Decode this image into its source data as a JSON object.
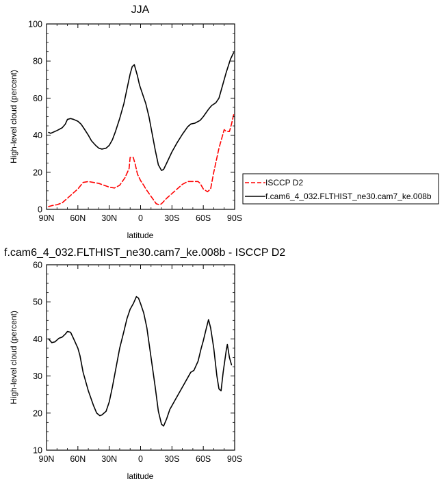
{
  "chart_data": [
    {
      "type": "line",
      "title": "JJA",
      "xlabel": "latitude",
      "ylabel": "High-level cloud (percent)",
      "xlim": [
        90,
        -90
      ],
      "ylim": [
        0,
        100
      ],
      "x_ticks": [
        90,
        60,
        30,
        0,
        -30,
        -60,
        -90
      ],
      "x_tick_labels": [
        "90N",
        "60N",
        "30N",
        "0",
        "30S",
        "60S",
        "90S"
      ],
      "y_ticks": [
        0,
        20,
        40,
        60,
        80,
        100
      ],
      "y_tick_labels": [
        "0",
        "20",
        "40",
        "60",
        "80",
        "100"
      ],
      "grid": false,
      "legend_position": "right",
      "series": [
        {
          "name": "ISCCP D2",
          "color": "#ff0000",
          "dash": "dashed",
          "points": [
            [
              88,
              1.5
            ],
            [
              85,
              2
            ],
            [
              80,
              2.5
            ],
            [
              75,
              3.5
            ],
            [
              70,
              6
            ],
            [
              65,
              8.5
            ],
            [
              60,
              11
            ],
            [
              55,
              14.5
            ],
            [
              50,
              15
            ],
            [
              45,
              14.5
            ],
            [
              40,
              14
            ],
            [
              35,
              13
            ],
            [
              30,
              12
            ],
            [
              25,
              11.5
            ],
            [
              20,
              13
            ],
            [
              15,
              17
            ],
            [
              11,
              22
            ],
            [
              10,
              28
            ],
            [
              7,
              28
            ],
            [
              5,
              24
            ],
            [
              3,
              19
            ],
            [
              0,
              15.5
            ],
            [
              -3,
              13
            ],
            [
              -5,
              11
            ],
            [
              -10,
              7
            ],
            [
              -15,
              3
            ],
            [
              -18,
              2.5
            ],
            [
              -20,
              3
            ],
            [
              -25,
              6
            ],
            [
              -30,
              8.5
            ],
            [
              -35,
              11
            ],
            [
              -40,
              13.5
            ],
            [
              -45,
              15
            ],
            [
              -50,
              15
            ],
            [
              -55,
              15
            ],
            [
              -57,
              14
            ],
            [
              -60,
              11
            ],
            [
              -64,
              9.5
            ],
            [
              -67,
              11
            ],
            [
              -70,
              20
            ],
            [
              -75,
              33
            ],
            [
              -80,
              43
            ],
            [
              -82,
              42
            ],
            [
              -85,
              42
            ],
            [
              -87,
              46
            ],
            [
              -89,
              51
            ]
          ]
        },
        {
          "name": "f.cam6_4_032.FLTHIST_ne30.cam7_ke.008b",
          "color": "#000000",
          "dash": "solid",
          "points": [
            [
              88,
              41.5
            ],
            [
              86,
              41
            ],
            [
              84,
              41.5
            ],
            [
              80,
              42.5
            ],
            [
              75,
              44
            ],
            [
              72,
              46
            ],
            [
              70,
              48.5
            ],
            [
              67,
              49
            ],
            [
              64,
              48.5
            ],
            [
              60,
              47.5
            ],
            [
              57,
              46
            ],
            [
              54,
              43.5
            ],
            [
              50,
              40
            ],
            [
              47,
              37
            ],
            [
              43,
              34.5
            ],
            [
              40,
              33
            ],
            [
              37,
              32.5
            ],
            [
              33,
              33
            ],
            [
              30,
              34.5
            ],
            [
              27,
              37.5
            ],
            [
              24,
              42
            ],
            [
              20,
              49
            ],
            [
              16,
              57
            ],
            [
              13,
              65
            ],
            [
              10,
              73
            ],
            [
              8,
              77
            ],
            [
              6,
              78
            ],
            [
              3,
              72
            ],
            [
              1,
              67
            ],
            [
              -2,
              62
            ],
            [
              -5,
              57
            ],
            [
              -8,
              50
            ],
            [
              -11,
              41
            ],
            [
              -14,
              32
            ],
            [
              -17,
              24
            ],
            [
              -20,
              21
            ],
            [
              -22,
              21.5
            ],
            [
              -25,
              25
            ],
            [
              -30,
              31
            ],
            [
              -35,
              36
            ],
            [
              -40,
              40.5
            ],
            [
              -45,
              44.5
            ],
            [
              -48,
              46
            ],
            [
              -52,
              46.5
            ],
            [
              -57,
              48
            ],
            [
              -60,
              50
            ],
            [
              -65,
              54
            ],
            [
              -68,
              56
            ],
            [
              -72,
              57.5
            ],
            [
              -75,
              60
            ],
            [
              -78,
              66
            ],
            [
              -82,
              74
            ],
            [
              -86,
              81
            ],
            [
              -89,
              84.5
            ]
          ]
        }
      ]
    },
    {
      "type": "line",
      "title": "f.cam6_4_032.FLTHIST_ne30.cam7_ke.008b - ISCCP D2",
      "xlabel": "latitude",
      "ylabel": "High-level cloud (percent)",
      "xlim": [
        90,
        -90
      ],
      "ylim": [
        10,
        60
      ],
      "x_ticks": [
        90,
        60,
        30,
        0,
        -30,
        -60,
        -90
      ],
      "x_tick_labels": [
        "90N",
        "60N",
        "30N",
        "0",
        "30S",
        "60S",
        "90S"
      ],
      "y_ticks": [
        10,
        20,
        30,
        40,
        50,
        60
      ],
      "y_tick_labels": [
        "10",
        "20",
        "30",
        "40",
        "50",
        "60"
      ],
      "grid": false,
      "series": [
        {
          "color": "#000000",
          "dash": "solid",
          "points": [
            [
              88,
              40
            ],
            [
              85,
              39
            ],
            [
              82,
              39.2
            ],
            [
              78,
              40.2
            ],
            [
              75,
              40.5
            ],
            [
              72,
              41.3
            ],
            [
              70,
              42
            ],
            [
              67,
              41.8
            ],
            [
              64,
              40
            ],
            [
              60,
              37.5
            ],
            [
              58,
              35.5
            ],
            [
              55,
              31
            ],
            [
              50,
              26
            ],
            [
              45,
              22
            ],
            [
              42,
              20
            ],
            [
              39,
              19.3
            ],
            [
              37,
              19.5
            ],
            [
              33,
              20.5
            ],
            [
              30,
              23
            ],
            [
              27,
              27
            ],
            [
              23,
              33
            ],
            [
              20,
              37.5
            ],
            [
              16,
              42
            ],
            [
              13,
              45.5
            ],
            [
              10,
              48
            ],
            [
              7,
              49.5
            ],
            [
              4,
              51.4
            ],
            [
              2,
              51
            ],
            [
              0,
              49.5
            ],
            [
              -3,
              47
            ],
            [
              -6,
              43
            ],
            [
              -10,
              35
            ],
            [
              -14,
              27
            ],
            [
              -17,
              20.5
            ],
            [
              -20,
              17
            ],
            [
              -22,
              16.5
            ],
            [
              -25,
              18.5
            ],
            [
              -28,
              21
            ],
            [
              -32,
              23
            ],
            [
              -35,
              24.5
            ],
            [
              -40,
              27
            ],
            [
              -45,
              29.5
            ],
            [
              -48,
              31
            ],
            [
              -51,
              31.5
            ],
            [
              -55,
              34
            ],
            [
              -58,
              37.5
            ],
            [
              -60,
              39.5
            ],
            [
              -63,
              43
            ],
            [
              -65,
              45.2
            ],
            [
              -67,
              43
            ],
            [
              -70,
              37.5
            ],
            [
              -73,
              30
            ],
            [
              -75,
              26.5
            ],
            [
              -77,
              26
            ],
            [
              -79,
              31
            ],
            [
              -81,
              35
            ],
            [
              -82,
              37
            ],
            [
              -83,
              38.5
            ],
            [
              -85,
              35
            ],
            [
              -87,
              33
            ]
          ]
        }
      ]
    }
  ]
}
